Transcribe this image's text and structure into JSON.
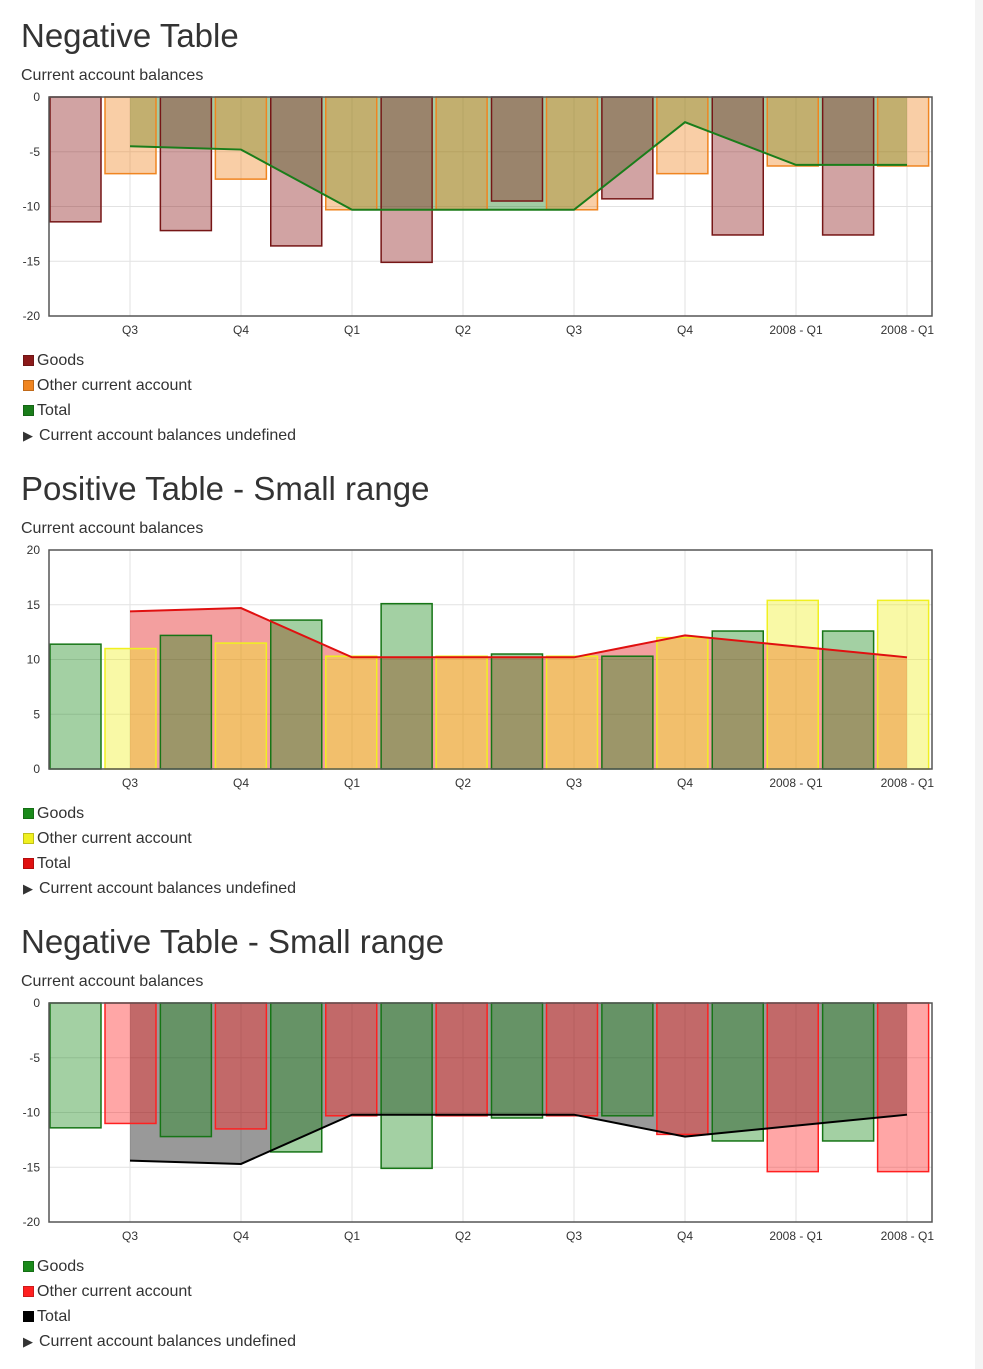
{
  "chart_data": [
    {
      "type": "bar",
      "title": "Negative Table",
      "caption": "Current account balances",
      "categories": [
        "Q3",
        "Q4",
        "Q1",
        "Q2",
        "Q3",
        "Q4",
        "2008 - Q1",
        "2008 - Q1"
      ],
      "ylim": [
        -20,
        0
      ],
      "yticks": [
        0,
        -5,
        -10,
        -15,
        -20
      ],
      "grid": true,
      "series": [
        {
          "name": "Goods",
          "type": "bar",
          "color": "#8b1a1a",
          "values": [
            -11.4,
            -12.2,
            -13.6,
            -15.1,
            -9.5,
            -9.3,
            -12.6,
            -12.6
          ]
        },
        {
          "name": "Other current account",
          "type": "bar",
          "color": "#f08520",
          "values": [
            -7.0,
            -7.5,
            -10.3,
            -10.3,
            -10.3,
            -7.0,
            -6.3,
            -6.3
          ]
        },
        {
          "name": "Total",
          "type": "line",
          "color": "#1a7d1a",
          "values": [
            -4.5,
            -4.8,
            -10.3,
            -10.3,
            -10.3,
            -2.3,
            -6.2,
            -6.2
          ]
        }
      ],
      "legend_toggle": "Current account balances undefined"
    },
    {
      "type": "bar",
      "title": "Positive Table - Small range",
      "caption": "Current account balances",
      "categories": [
        "Q3",
        "Q4",
        "Q1",
        "Q2",
        "Q3",
        "Q4",
        "2008 - Q1",
        "2008 - Q1"
      ],
      "ylim": [
        0,
        20
      ],
      "yticks": [
        20,
        15,
        10,
        5,
        0
      ],
      "grid": true,
      "series": [
        {
          "name": "Goods",
          "type": "bar",
          "color": "#1a8a1a",
          "values": [
            11.4,
            12.2,
            13.6,
            15.1,
            10.5,
            10.3,
            12.6,
            12.6
          ]
        },
        {
          "name": "Other current account",
          "type": "bar",
          "color": "#f0f020",
          "values": [
            11.0,
            11.5,
            10.3,
            10.3,
            10.3,
            12.0,
            15.4,
            15.4
          ]
        },
        {
          "name": "Total",
          "type": "line",
          "color": "#e01010",
          "values": [
            14.4,
            14.7,
            10.2,
            10.2,
            10.2,
            12.2,
            11.2,
            10.2
          ]
        }
      ],
      "legend_toggle": "Current account balances undefined"
    },
    {
      "type": "bar",
      "title": "Negative Table - Small range",
      "caption": "Current account balances",
      "categories": [
        "Q3",
        "Q4",
        "Q1",
        "Q2",
        "Q3",
        "Q4",
        "2008 - Q1",
        "2008 - Q1"
      ],
      "ylim": [
        -20,
        0
      ],
      "yticks": [
        0,
        -5,
        -10,
        -15,
        -20
      ],
      "grid": true,
      "series": [
        {
          "name": "Goods",
          "type": "bar",
          "color": "#1a8a1a",
          "values": [
            -11.4,
            -12.2,
            -13.6,
            -15.1,
            -10.5,
            -10.3,
            -12.6,
            -12.6
          ]
        },
        {
          "name": "Other current account",
          "type": "bar",
          "color": "#ff2020",
          "values": [
            -11.0,
            -11.5,
            -10.3,
            -10.3,
            -10.3,
            -12.0,
            -15.4,
            -15.4
          ]
        },
        {
          "name": "Total",
          "type": "line",
          "color": "#000000",
          "values": [
            -14.4,
            -14.7,
            -10.2,
            -10.2,
            -10.2,
            -12.2,
            -11.2,
            -10.2
          ]
        }
      ],
      "legend_toggle": "Current account balances undefined"
    }
  ]
}
